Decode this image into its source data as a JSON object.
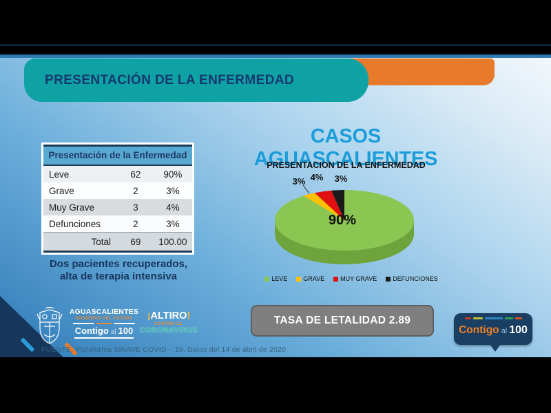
{
  "slide": {
    "header_title": "PRESENTACIÓN DE LA ENFERMEDAD",
    "main_title": "CASOS AGUASCALIENTES",
    "note_line1": "Dos pacientes recuperados,",
    "note_line2": "alta de terapia intensiva",
    "lethality_label": "TASA DE LETALIDAD 2.89",
    "source": "FUENTE. Plataforma SINAVE COVID – 19. Datos del 14 de abril de 2020"
  },
  "table": {
    "title": "Presentación de la Enfermedad",
    "rows": [
      {
        "label": "Leve",
        "count": "62",
        "pct": "90%"
      },
      {
        "label": "Grave",
        "count": "2",
        "pct": "3%"
      },
      {
        "label": "Muy Grave",
        "count": "3",
        "pct": "4%"
      },
      {
        "label": "Defunciones",
        "count": "2",
        "pct": "3%"
      }
    ],
    "total": {
      "label": "Total",
      "count": "69",
      "pct": "100.00"
    }
  },
  "chart_data": {
    "type": "pie",
    "style": "3d-pie",
    "title": "PRESENTACION DE LA ENFERMEDAD",
    "labels": [
      "LEVE",
      "GRAVE",
      "MUY GRAVE",
      "DEFUNCIONES"
    ],
    "values": [
      90,
      3,
      4,
      3
    ],
    "data_labels": [
      "90%",
      "3%",
      "4%",
      "3%"
    ],
    "colors": [
      "#8cc652",
      "#ffc000",
      "#e01010",
      "#1a1a1a"
    ],
    "side_color": "#6fa33c",
    "legend_position": "bottom"
  },
  "logos": {
    "gov": {
      "state": "AGUASCALIENTES",
      "sub": "GOBIERNO DEL ESTADO",
      "contigo": "Contigo",
      "al": "al",
      "hundred": "100"
    },
    "altiro": {
      "excl_open": "¡",
      "word": "ALTIRO",
      "excl_close": "!",
      "line2": "CONTRA EL",
      "line3": "CORONAVIRUS"
    },
    "badge": {
      "word1": "Contigo",
      "word2": "al",
      "word3": "100",
      "dash_colors": [
        "#c0392b",
        "#bfbf3a",
        "#2e86c1",
        "#2fa05a",
        "#d35427"
      ]
    }
  },
  "colors": {
    "teal_banner": "#0fa2a4",
    "orange_banner": "#e87a2b",
    "banner_text": "#16386e",
    "main_title_blue": "#1b9dd9",
    "table_header_bg": "#58a9d1",
    "lethality_box": "#7f7f7f",
    "badge_bg": "#1b3e63"
  }
}
